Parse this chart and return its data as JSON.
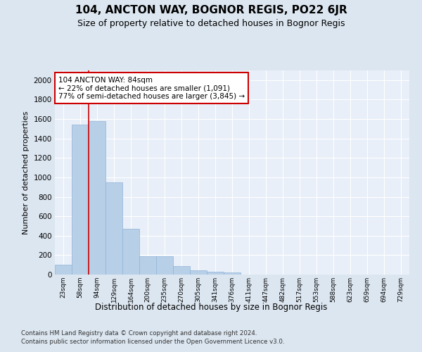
{
  "title1": "104, ANCTON WAY, BOGNOR REGIS, PO22 6JR",
  "title2": "Size of property relative to detached houses in Bognor Regis",
  "xlabel": "Distribution of detached houses by size in Bognor Regis",
  "ylabel": "Number of detached properties",
  "categories": [
    "23sqm",
    "58sqm",
    "94sqm",
    "129sqm",
    "164sqm",
    "200sqm",
    "235sqm",
    "270sqm",
    "305sqm",
    "341sqm",
    "376sqm",
    "411sqm",
    "447sqm",
    "482sqm",
    "517sqm",
    "553sqm",
    "588sqm",
    "623sqm",
    "659sqm",
    "694sqm",
    "729sqm"
  ],
  "values": [
    105,
    1540,
    1580,
    950,
    470,
    185,
    185,
    90,
    40,
    30,
    20,
    0,
    0,
    0,
    0,
    0,
    0,
    0,
    0,
    0,
    0
  ],
  "bar_color": "#b8cfe8",
  "bar_edgecolor": "#90b4d8",
  "annotation_text": "104 ANCTON WAY: 84sqm\n← 22% of detached houses are smaller (1,091)\n77% of semi-detached houses are larger (3,845) →",
  "annotation_box_facecolor": "#ffffff",
  "annotation_box_edgecolor": "#cc0000",
  "ylim": [
    0,
    2100
  ],
  "yticks": [
    0,
    200,
    400,
    600,
    800,
    1000,
    1200,
    1400,
    1600,
    1800,
    2000
  ],
  "vline_color": "#cc0000",
  "vline_x": 1.5,
  "footer1": "Contains HM Land Registry data © Crown copyright and database right 2024.",
  "footer2": "Contains public sector information licensed under the Open Government Licence v3.0.",
  "bg_color": "#dce6f0",
  "plot_bg_color": "#e8eff8"
}
